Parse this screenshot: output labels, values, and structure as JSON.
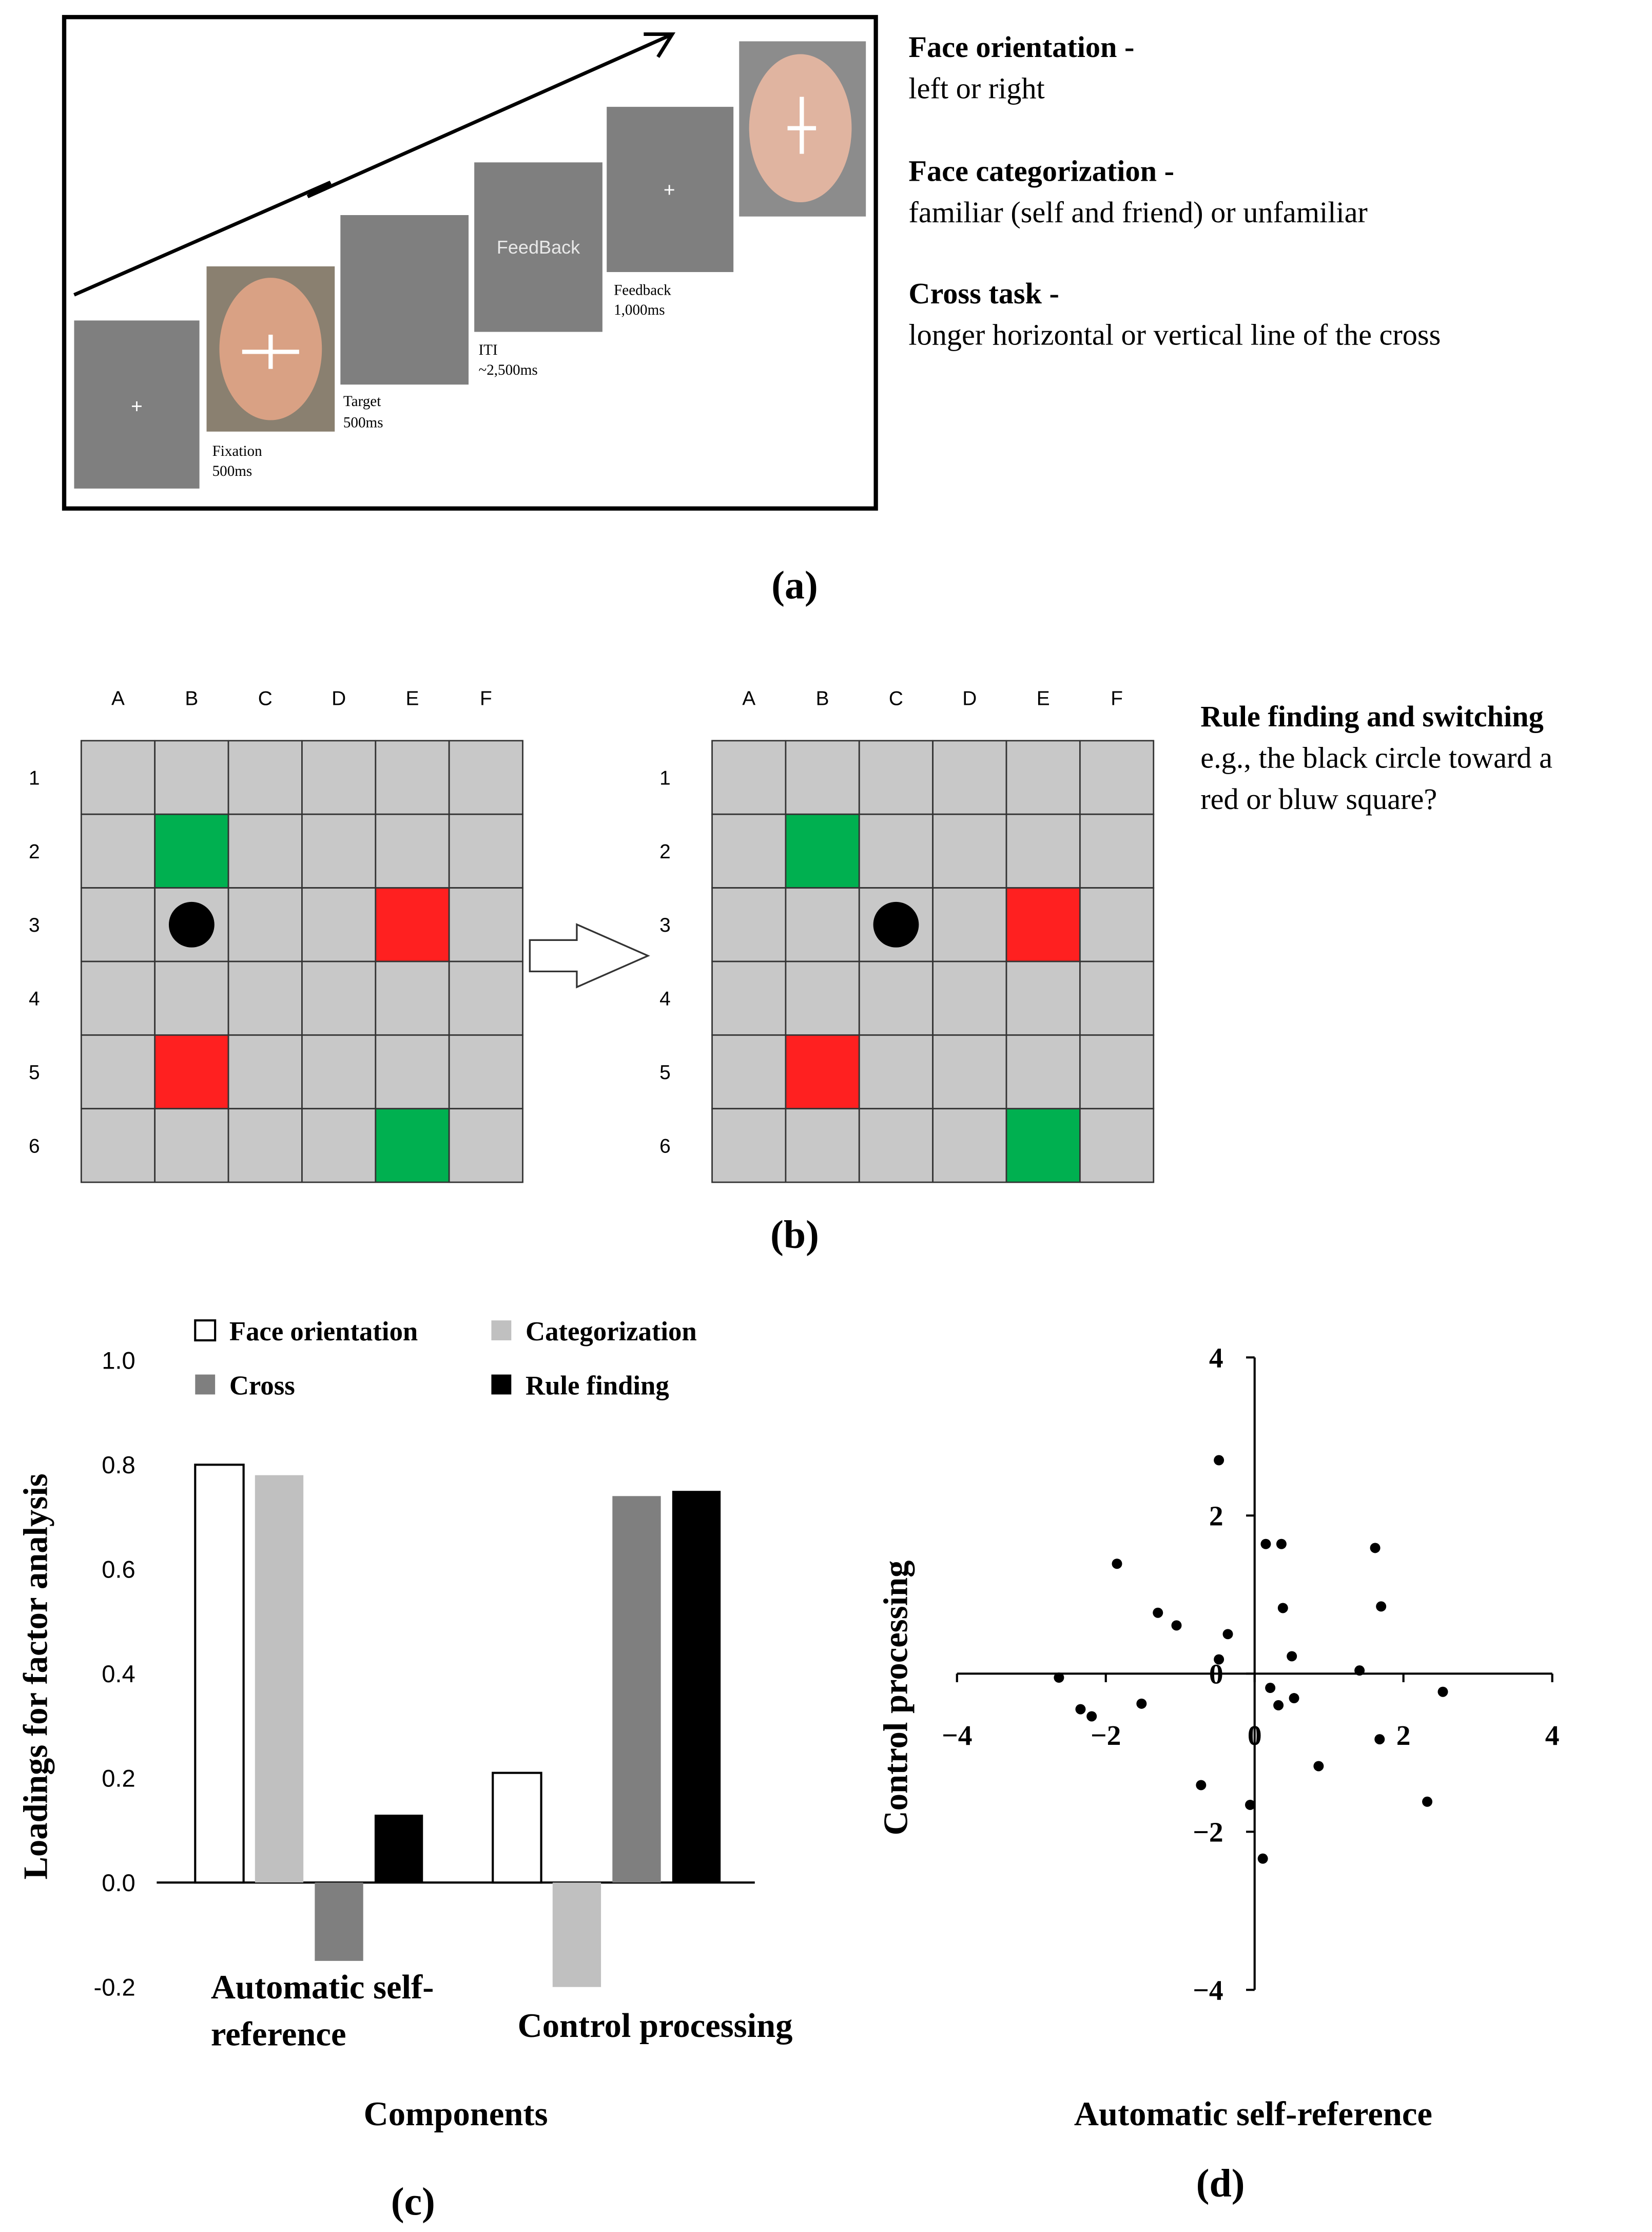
{
  "panel_a": {
    "screens": {
      "fixation_cross": "+",
      "feedback_screen": "FeedBack",
      "iti_cross": "+"
    },
    "timeline_labels": [
      [
        "Fixation",
        "500ms"
      ],
      [
        "Target",
        "500ms"
      ],
      [
        "ITI",
        "~2,500ms"
      ],
      [
        "Feedback",
        "1,000ms"
      ]
    ],
    "tasks": [
      {
        "title": "Face orientation -",
        "description": "left or right"
      },
      {
        "title": "Face categorization -",
        "description": "familiar (self and friend) or unfamiliar"
      },
      {
        "title": "Cross task -",
        "description": "longer horizontal or vertical line of the cross"
      }
    ],
    "label": "(a)"
  },
  "panel_b": {
    "columns": [
      "A",
      "B",
      "C",
      "D",
      "E",
      "F"
    ],
    "rows": [
      "1",
      "2",
      "3",
      "4",
      "5",
      "6"
    ],
    "title": "Rule finding and switching",
    "description": [
      "e.g., the black circle toward a",
      "red or bluw square?"
    ],
    "label": "(b)"
  },
  "chart_data": [
    {
      "type": "bar",
      "label": "(c)",
      "x_label": "Components",
      "y_label": "Loadings for factor analysis",
      "categories": [
        "Automatic self-reference",
        "Control processing"
      ],
      "series": [
        {
          "name": "Face orientation",
          "color": "#ffffff",
          "values": [
            0.8,
            0.21
          ]
        },
        {
          "name": "Categorization",
          "color": "#c0c0c0",
          "values": [
            0.78,
            -0.2
          ]
        },
        {
          "name": "Cross",
          "color": "#7f7f7f",
          "values": [
            -0.15,
            0.74
          ]
        },
        {
          "name": "Rule finding",
          "color": "#000000",
          "values": [
            0.13,
            0.75
          ]
        }
      ],
      "ylim": [
        -0.2,
        1.0
      ],
      "yticks": [
        -0.2,
        {
          "value": 0,
          "label": "0.0"
        },
        0.2,
        0.4,
        0.6,
        0.8,
        {
          "value": 1,
          "label": "1.0"
        }
      ],
      "grid": false
    },
    {
      "type": "scatter",
      "label": "(d)",
      "x_label": "Automatic self-reference",
      "y_label": "Control processing",
      "color": "#000000",
      "x": [
        -0.48,
        -1.85,
        -1.3,
        -1.05,
        -0.36,
        -0.48,
        0.15,
        0.36,
        0.38,
        0.5,
        1.62,
        1.7,
        1.41,
        2.53,
        -2.63,
        -2.34,
        -2.19,
        -1.52,
        0.21,
        0.32,
        0.53,
        0.86,
        1.68,
        -0.72,
        -0.06,
        0.11,
        2.32
      ],
      "values": [
        2.7,
        1.39,
        0.77,
        0.61,
        0.5,
        0.18,
        1.64,
        1.64,
        0.83,
        0.22,
        1.59,
        0.85,
        0.04,
        -0.23,
        -0.05,
        -0.45,
        -0.54,
        -0.38,
        -0.18,
        -0.4,
        -0.31,
        -1.17,
        -0.83,
        -1.41,
        -1.66,
        -2.34,
        -1.62
      ],
      "xlim": [
        -4,
        4
      ],
      "ylim": [
        -4,
        4
      ],
      "xticks": [
        {
          "value": -4,
          "label": "−4"
        },
        {
          "value": -2,
          "label": "−2"
        },
        0,
        2,
        4
      ],
      "yticks": [
        {
          "value": -4,
          "label": "−4"
        },
        {
          "value": -2,
          "label": "−2"
        },
        0,
        2,
        4
      ]
    }
  ]
}
